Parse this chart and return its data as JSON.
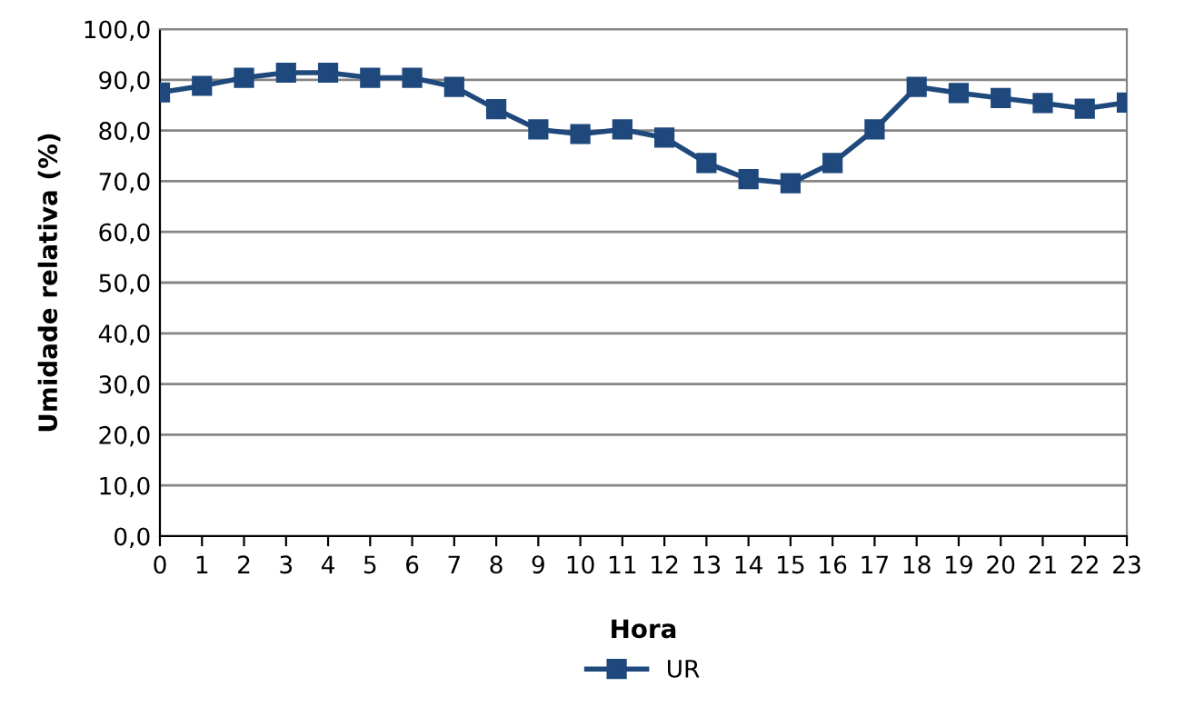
{
  "chart_data": {
    "type": "line",
    "xlabel": "Hora",
    "ylabel": "Umidade relativa (%)",
    "x": [
      0,
      1,
      2,
      3,
      4,
      5,
      6,
      7,
      8,
      9,
      10,
      11,
      12,
      13,
      14,
      15,
      16,
      17,
      18,
      19,
      20,
      21,
      22,
      23
    ],
    "series": [
      {
        "name": "UR",
        "color": "#1f497d",
        "values": [
          87.5,
          88.8,
          90.4,
          91.4,
          91.4,
          90.4,
          90.4,
          88.6,
          84.2,
          80.2,
          79.3,
          80.2,
          78.6,
          73.6,
          70.4,
          69.6,
          73.6,
          80.2,
          88.6,
          87.4,
          86.4,
          85.4,
          84.3,
          85.5
        ]
      }
    ],
    "xlim": [
      0,
      23
    ],
    "xticks": [
      0,
      1,
      2,
      3,
      4,
      5,
      6,
      7,
      8,
      9,
      10,
      11,
      12,
      13,
      14,
      15,
      16,
      17,
      18,
      19,
      20,
      21,
      22,
      23
    ],
    "ylim": [
      0,
      100
    ],
    "yticks": [
      {
        "value": 0,
        "label": "0,0"
      },
      {
        "value": 10,
        "label": "10,0"
      },
      {
        "value": 20,
        "label": "20,0"
      },
      {
        "value": 30,
        "label": "30,0"
      },
      {
        "value": 40,
        "label": "40,0"
      },
      {
        "value": 50,
        "label": "50,0"
      },
      {
        "value": 60,
        "label": "60,0"
      },
      {
        "value": 70,
        "label": "70,0"
      },
      {
        "value": 80,
        "label": "80,0"
      },
      {
        "value": 90,
        "label": "90,0"
      },
      {
        "value": 100,
        "label": "100,0"
      }
    ],
    "grid": "y",
    "legend": "bottom",
    "marker": "square",
    "line_style": "solid"
  }
}
